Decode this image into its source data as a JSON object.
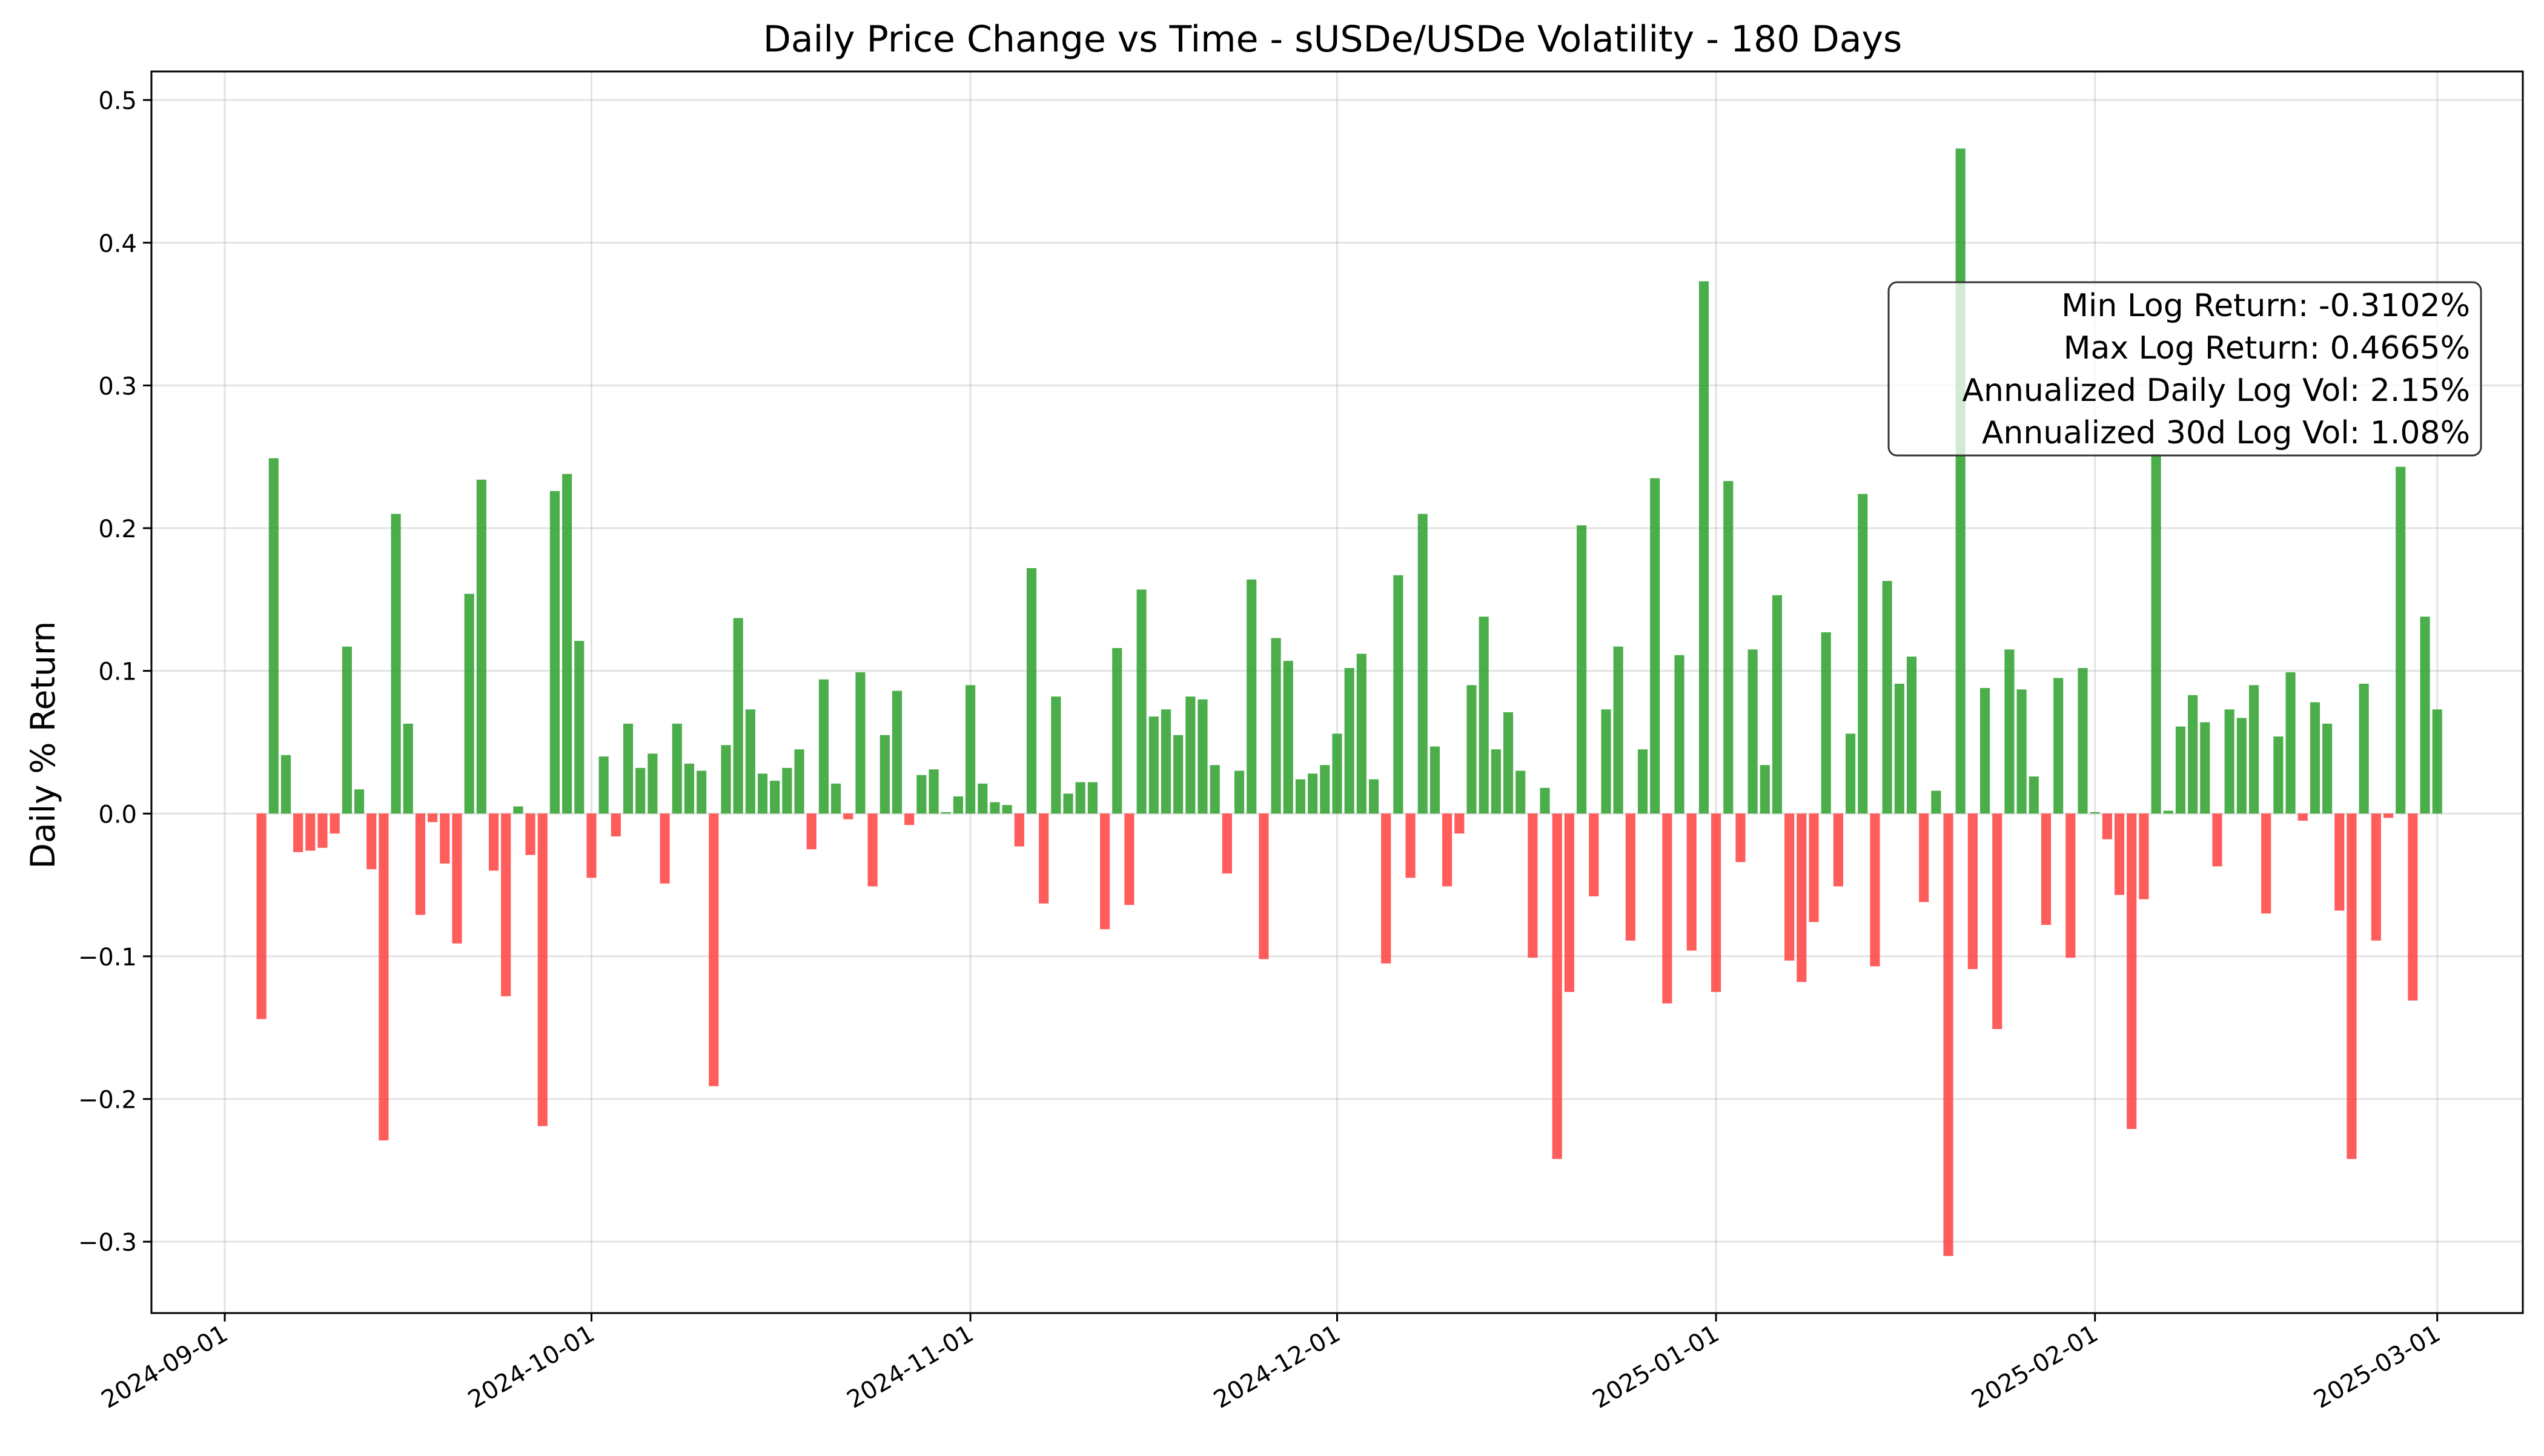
{
  "chart_data": {
    "type": "bar",
    "title": "Daily Price Change vs Time - sUSDe/USDe Volatility - 180 Days",
    "xlabel": "",
    "ylabel": "Daily % Return",
    "ylim": [
      -0.35,
      0.52
    ],
    "xlim": [
      "2024-08-26",
      "2025-03-08"
    ],
    "grid": true,
    "y_ticks": [
      -0.3,
      -0.2,
      -0.1,
      0.0,
      0.1,
      0.2,
      0.3,
      0.4,
      0.5
    ],
    "y_tick_labels": [
      "−0.3",
      "−0.2",
      "−0.1",
      "0.0",
      "0.1",
      "0.2",
      "0.3",
      "0.4",
      "0.5"
    ],
    "x_ticks": [
      "2024-09-01",
      "2024-10-01",
      "2024-11-01",
      "2024-12-01",
      "2025-01-01",
      "2025-02-01",
      "2025-03-01"
    ],
    "x_tick_labels": [
      "2024-09-01",
      "2024-10-01",
      "2024-11-01",
      "2024-12-01",
      "2025-01-01",
      "2025-02-01",
      "2025-03-01"
    ],
    "positive_color": "#2ca02c",
    "negative_color": "#ff4040",
    "stats_box": [
      "Min Log Return: -0.3102%",
      "Max Log Return: 0.4665%",
      "Annualized Daily Log Vol: 2.15%",
      "Annualized 30d Log Vol: 1.08%"
    ],
    "start_date": "2024-09-04",
    "values": [
      -0.144,
      0.249,
      0.041,
      -0.027,
      -0.026,
      -0.024,
      -0.014,
      0.117,
      0.017,
      -0.039,
      -0.229,
      0.21,
      0.063,
      -0.071,
      -0.006,
      -0.035,
      -0.091,
      0.154,
      0.234,
      -0.04,
      -0.128,
      0.005,
      -0.029,
      -0.219,
      0.226,
      0.238,
      0.121,
      -0.045,
      0.04,
      -0.016,
      0.063,
      0.032,
      0.042,
      -0.049,
      0.063,
      0.035,
      0.03,
      -0.191,
      0.048,
      0.137,
      0.073,
      0.028,
      0.023,
      0.032,
      0.045,
      -0.025,
      0.094,
      0.021,
      -0.004,
      0.099,
      -0.051,
      0.055,
      0.086,
      -0.008,
      0.027,
      0.031,
      0.001,
      0.012,
      0.09,
      0.021,
      0.008,
      0.006,
      -0.023,
      0.172,
      -0.063,
      0.082,
      0.014,
      0.022,
      0.022,
      -0.081,
      0.116,
      -0.064,
      0.157,
      0.068,
      0.073,
      0.055,
      0.082,
      0.08,
      0.034,
      -0.042,
      0.03,
      0.164,
      -0.102,
      0.123,
      0.107,
      0.024,
      0.028,
      0.034,
      0.056,
      0.102,
      0.112,
      0.024,
      -0.105,
      0.167,
      -0.045,
      0.21,
      0.047,
      -0.051,
      -0.014,
      0.09,
      0.138,
      0.045,
      0.071,
      0.03,
      -0.101,
      0.018,
      -0.242,
      -0.125,
      0.202,
      -0.058,
      0.073,
      0.117,
      -0.089,
      0.045,
      0.235,
      -0.133,
      0.111,
      -0.096,
      0.373,
      -0.125,
      0.233,
      -0.034,
      0.115,
      0.034,
      0.153,
      -0.103,
      -0.118,
      -0.076,
      0.127,
      -0.051,
      0.056,
      0.224,
      -0.107,
      0.163,
      0.091,
      0.11,
      -0.062,
      0.016,
      -0.31,
      0.466,
      -0.109,
      0.088,
      -0.151,
      0.115,
      0.087,
      0.026,
      -0.078,
      0.095,
      -0.101,
      0.102,
      0.001,
      -0.018,
      -0.057,
      -0.221,
      -0.06,
      0.252,
      0.002,
      0.061,
      0.083,
      0.064,
      -0.037,
      0.073,
      0.067,
      0.09,
      -0.07,
      0.054,
      0.099,
      -0.005,
      0.078,
      0.063,
      -0.068,
      -0.242,
      0.091,
      -0.089,
      -0.003,
      0.243,
      -0.131,
      0.138,
      0.073
    ]
  }
}
